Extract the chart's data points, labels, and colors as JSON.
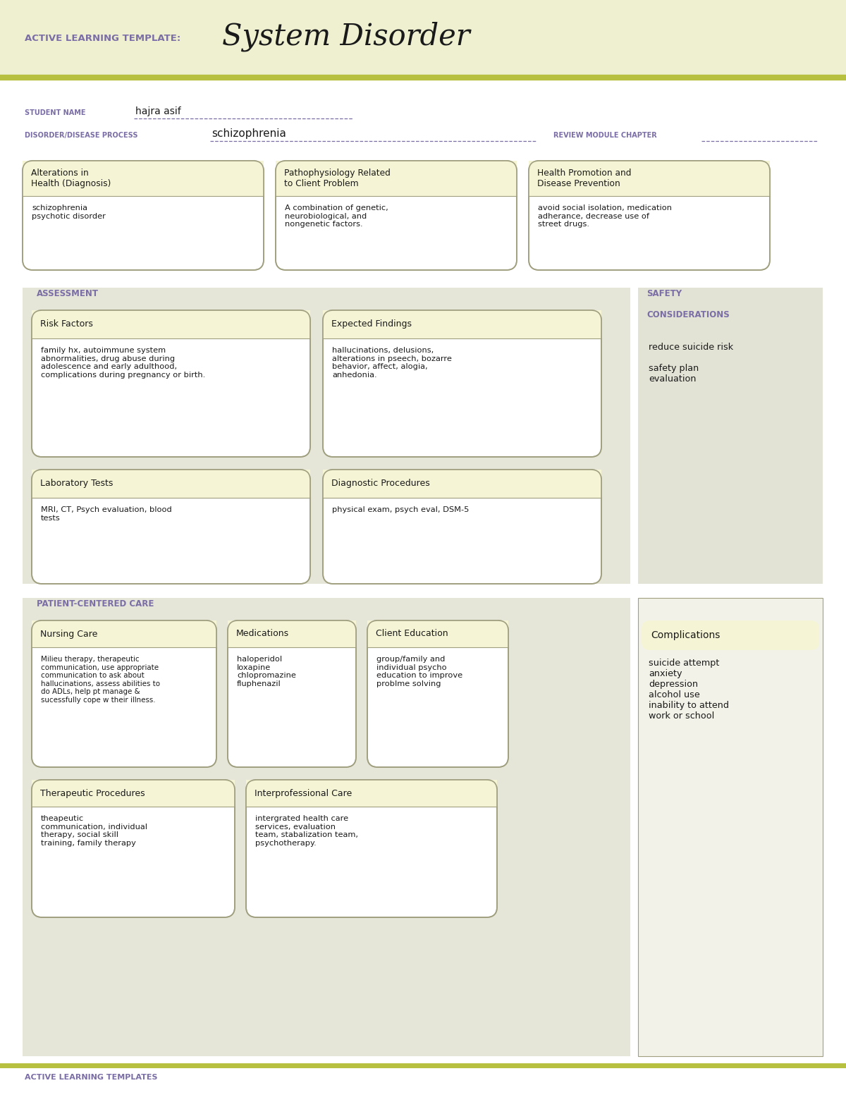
{
  "title_prefix": "ACTIVE LEARNING TEMPLATE:",
  "title_main": "System Disorder",
  "bg_color_header": "#eef0d0",
  "bg_color_white": "#ffffff",
  "accent_line_color": "#b8c040",
  "purple_color": "#7b6ea6",
  "text_dark": "#1a1a1a",
  "box_fill": "#f5f5d5",
  "box_border": "#a0a080",
  "student_name": "hajra asif",
  "disorder": "schizophrenia",
  "top_boxes": [
    {
      "title": "Alterations in\nHealth (Diagnosis)",
      "content": "schizophrenia\npsychotic disorder"
    },
    {
      "title": "Pathophysiology Related\nto Client Problem",
      "content": "A combination of genetic,\nneurobiological, and\nnongenetic factors."
    },
    {
      "title": "Health Promotion and\nDisease Prevention",
      "content": "avoid social isolation, medication\nadherance, decrease use of\nstreet drugs."
    }
  ],
  "assessment_label": "ASSESSMENT",
  "safety_content": "reduce suicide risk\n\nsafety plan\nevaluation",
  "assess_boxes": [
    {
      "title": "Risk Factors",
      "content": "family hx, autoimmune system\nabnormalities, drug abuse during\nadolescence and early adulthood,\ncomplications during pregnancy or birth."
    },
    {
      "title": "Expected Findings",
      "content": "hallucinations, delusions,\nalterations in pseech, bozarre\nbehavior, affect, alogia,\nanhedonia."
    },
    {
      "title": "Laboratory Tests",
      "content": "MRI, CT, Psych evaluation, blood\ntests"
    },
    {
      "title": "Diagnostic Procedures",
      "content": "physical exam, psych eval, DSM-5"
    }
  ],
  "patient_care_label": "PATIENT-CENTERED CARE",
  "complications_label": "Complications",
  "complications_content": "suicide attempt\nanxiety\ndepression\nalcohol use\ninability to attend\nwork or school",
  "patient_boxes": [
    {
      "title": "Nursing Care",
      "content": "Milieu therapy, therapeutic\ncommunication, use appropriate\ncommunication to ask about\nhallucinations, assess abilities to\ndo ADLs, help pt manage &\nsucessfully cope w their illness."
    },
    {
      "title": "Medications",
      "content": "haloperidol\nloxapine\nchlopromazine\nfluphenazil"
    },
    {
      "title": "Client Education",
      "content": "group/family and\nindividual psycho\neducation to improve\nproblme solving"
    },
    {
      "title": "Therapeutic Procedures",
      "content": "theapeutic\ncommunication, individual\ntherapy, social skill\ntraining, family therapy"
    },
    {
      "title": "Interprofessional Care",
      "content": "intergrated health care\nservices, evaluation\nteam, stabalization team,\npsychotherapy."
    }
  ],
  "footer_text": "ACTIVE LEARNING TEMPLATES"
}
